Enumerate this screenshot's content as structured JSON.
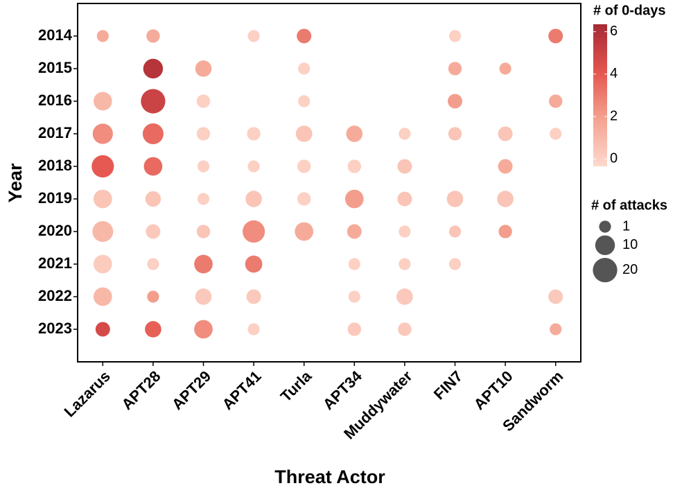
{
  "chart_data": {
    "type": "bubble",
    "x_label": "Threat Actor",
    "y_label": "Year",
    "x_categories": [
      "Lazarus",
      "APT28",
      "APT29",
      "APT41",
      "Turla",
      "APT34",
      "Muddywater",
      "FIN7",
      "APT10",
      "Sandworm"
    ],
    "y_categories": [
      "2014",
      "2015",
      "2016",
      "2017",
      "2018",
      "2019",
      "2020",
      "2021",
      "2022",
      "2023"
    ],
    "color_title": "# of 0-days",
    "zlim": [
      -0.35,
      6.35
    ],
    "zticks": [
      0,
      2,
      4,
      6
    ],
    "colormap": [
      "#fdd9cd",
      "#f4a290",
      "#e4554f",
      "#a52a35"
    ],
    "size_title": "# of attacks",
    "size_ticks": [
      1,
      10,
      20
    ],
    "points": [
      {
        "actor": "Lazarus",
        "year": "2014",
        "attacks": 1,
        "zero_days": 1.5
      },
      {
        "actor": "APT28",
        "year": "2014",
        "attacks": 2,
        "zero_days": 1.5
      },
      {
        "actor": "APT41",
        "year": "2014",
        "attacks": 1,
        "zero_days": 0
      },
      {
        "actor": "Turla",
        "year": "2014",
        "attacks": 3,
        "zero_days": 3
      },
      {
        "actor": "FIN7",
        "year": "2014",
        "attacks": 1,
        "zero_days": 0
      },
      {
        "actor": "Sandworm",
        "year": "2014",
        "attacks": 3,
        "zero_days": 3
      },
      {
        "actor": "APT28",
        "year": "2015",
        "attacks": 10,
        "zero_days": 5.8
      },
      {
        "actor": "APT29",
        "year": "2015",
        "attacks": 5,
        "zero_days": 1.5
      },
      {
        "actor": "Turla",
        "year": "2015",
        "attacks": 1,
        "zero_days": 0
      },
      {
        "actor": "FIN7",
        "year": "2015",
        "attacks": 2,
        "zero_days": 1.5
      },
      {
        "actor": "APT10",
        "year": "2015",
        "attacks": 1,
        "zero_days": 1.5
      },
      {
        "actor": "Lazarus",
        "year": "2016",
        "attacks": 8,
        "zero_days": 1
      },
      {
        "actor": "APT28",
        "year": "2016",
        "attacks": 20,
        "zero_days": 5
      },
      {
        "actor": "APT29",
        "year": "2016",
        "attacks": 2,
        "zero_days": 0
      },
      {
        "actor": "Turla",
        "year": "2016",
        "attacks": 1,
        "zero_days": 0
      },
      {
        "actor": "FIN7",
        "year": "2016",
        "attacks": 3,
        "zero_days": 2
      },
      {
        "actor": "Sandworm",
        "year": "2016",
        "attacks": 2,
        "zero_days": 1.5
      },
      {
        "actor": "Lazarus",
        "year": "2017",
        "attacks": 11,
        "zero_days": 2.5
      },
      {
        "actor": "APT28",
        "year": "2017",
        "attacks": 12,
        "zero_days": 3.5
      },
      {
        "actor": "APT29",
        "year": "2017",
        "attacks": 2,
        "zero_days": 0
      },
      {
        "actor": "APT41",
        "year": "2017",
        "attacks": 2,
        "zero_days": 0
      },
      {
        "actor": "Turla",
        "year": "2017",
        "attacks": 5,
        "zero_days": 0.5
      },
      {
        "actor": "APT34",
        "year": "2017",
        "attacks": 5,
        "zero_days": 1.5
      },
      {
        "actor": "Muddywater",
        "year": "2017",
        "attacks": 1,
        "zero_days": 0
      },
      {
        "actor": "FIN7",
        "year": "2017",
        "attacks": 2,
        "zero_days": 0.5
      },
      {
        "actor": "APT10",
        "year": "2017",
        "attacks": 3,
        "zero_days": 0.5
      },
      {
        "actor": "Sandworm",
        "year": "2017",
        "attacks": 1,
        "zero_days": 0
      },
      {
        "actor": "Lazarus",
        "year": "2018",
        "attacks": 15,
        "zero_days": 4
      },
      {
        "actor": "APT28",
        "year": "2018",
        "attacks": 8,
        "zero_days": 3.5
      },
      {
        "actor": "APT29",
        "year": "2018",
        "attacks": 1,
        "zero_days": 0
      },
      {
        "actor": "APT41",
        "year": "2018",
        "attacks": 1,
        "zero_days": 0
      },
      {
        "actor": "Turla",
        "year": "2018",
        "attacks": 2,
        "zero_days": 0
      },
      {
        "actor": "APT34",
        "year": "2018",
        "attacks": 2,
        "zero_days": 0
      },
      {
        "actor": "Muddywater",
        "year": "2018",
        "attacks": 3,
        "zero_days": 0.5
      },
      {
        "actor": "APT10",
        "year": "2018",
        "attacks": 3,
        "zero_days": 1.5
      },
      {
        "actor": "Lazarus",
        "year": "2019",
        "attacks": 8,
        "zero_days": 0.5
      },
      {
        "actor": "APT28",
        "year": "2019",
        "attacks": 4,
        "zero_days": 0.5
      },
      {
        "actor": "APT29",
        "year": "2019",
        "attacks": 1,
        "zero_days": 0
      },
      {
        "actor": "APT41",
        "year": "2019",
        "attacks": 5,
        "zero_days": 0.5
      },
      {
        "actor": "Turla",
        "year": "2019",
        "attacks": 2,
        "zero_days": 0
      },
      {
        "actor": "APT34",
        "year": "2019",
        "attacks": 8,
        "zero_days": 2
      },
      {
        "actor": "Muddywater",
        "year": "2019",
        "attacks": 3,
        "zero_days": 0.5
      },
      {
        "actor": "FIN7",
        "year": "2019",
        "attacks": 5,
        "zero_days": 0.5
      },
      {
        "actor": "APT10",
        "year": "2019",
        "attacks": 5,
        "zero_days": 0.5
      },
      {
        "actor": "Lazarus",
        "year": "2020",
        "attacks": 12,
        "zero_days": 1
      },
      {
        "actor": "APT28",
        "year": "2020",
        "attacks": 3,
        "zero_days": 0.3
      },
      {
        "actor": "APT29",
        "year": "2020",
        "attacks": 2,
        "zero_days": 0.5
      },
      {
        "actor": "APT41",
        "year": "2020",
        "attacks": 15,
        "zero_days": 2.5
      },
      {
        "actor": "Turla",
        "year": "2020",
        "attacks": 8,
        "zero_days": 1.5
      },
      {
        "actor": "APT34",
        "year": "2020",
        "attacks": 3,
        "zero_days": 1.5
      },
      {
        "actor": "Muddywater",
        "year": "2020",
        "attacks": 1,
        "zero_days": 0
      },
      {
        "actor": "FIN7",
        "year": "2020",
        "attacks": 1,
        "zero_days": 0.5
      },
      {
        "actor": "APT10",
        "year": "2020",
        "attacks": 2,
        "zero_days": 2
      },
      {
        "actor": "Lazarus",
        "year": "2021",
        "attacks": 8,
        "zero_days": 0.2
      },
      {
        "actor": "APT28",
        "year": "2021",
        "attacks": 1,
        "zero_days": 0
      },
      {
        "actor": "APT29",
        "year": "2021",
        "attacks": 8,
        "zero_days": 3
      },
      {
        "actor": "APT41",
        "year": "2021",
        "attacks": 6,
        "zero_days": 3
      },
      {
        "actor": "APT34",
        "year": "2021",
        "attacks": 1,
        "zero_days": 0
      },
      {
        "actor": "Muddywater",
        "year": "2021",
        "attacks": 1,
        "zero_days": 0
      },
      {
        "actor": "FIN7",
        "year": "2021",
        "attacks": 1,
        "zero_days": 0
      },
      {
        "actor": "Lazarus",
        "year": "2022",
        "attacks": 8,
        "zero_days": 1
      },
      {
        "actor": "APT28",
        "year": "2022",
        "attacks": 1,
        "zero_days": 2
      },
      {
        "actor": "APT29",
        "year": "2022",
        "attacks": 5,
        "zero_days": 0.3
      },
      {
        "actor": "APT41",
        "year": "2022",
        "attacks": 3,
        "zero_days": 0.3
      },
      {
        "actor": "APT34",
        "year": "2022",
        "attacks": 1,
        "zero_days": 0
      },
      {
        "actor": "Muddywater",
        "year": "2022",
        "attacks": 5,
        "zero_days": 0.3
      },
      {
        "actor": "Sandworm",
        "year": "2022",
        "attacks": 3,
        "zero_days": 0.3
      },
      {
        "actor": "Lazarus",
        "year": "2023",
        "attacks": 3,
        "zero_days": 4.7
      },
      {
        "actor": "APT28",
        "year": "2023",
        "attacks": 5,
        "zero_days": 3.8
      },
      {
        "actor": "APT29",
        "year": "2023",
        "attacks": 8,
        "zero_days": 2.5
      },
      {
        "actor": "APT41",
        "year": "2023",
        "attacks": 1,
        "zero_days": 0
      },
      {
        "actor": "APT34",
        "year": "2023",
        "attacks": 2,
        "zero_days": 0.3
      },
      {
        "actor": "Muddywater",
        "year": "2023",
        "attacks": 2,
        "zero_days": 0.3
      },
      {
        "actor": "Sandworm",
        "year": "2023",
        "attacks": 1,
        "zero_days": 1.5
      }
    ]
  }
}
